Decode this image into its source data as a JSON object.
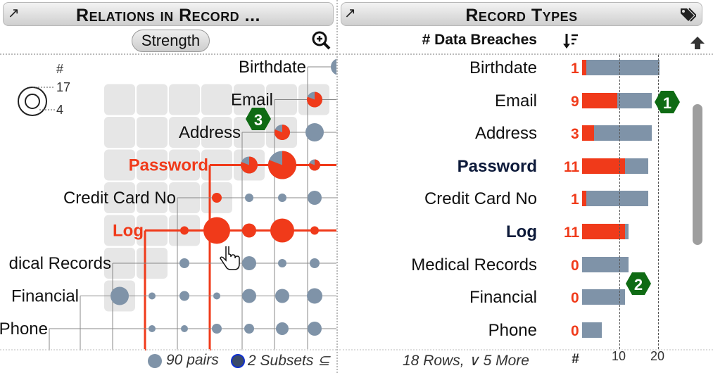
{
  "left": {
    "title": "Relations in Record ...",
    "strength_button": "Strength",
    "legend": {
      "symbol": "#",
      "big": "17",
      "small": "4"
    },
    "rows": [
      {
        "label": "Birthdate",
        "highlight": false
      },
      {
        "label": "Email",
        "highlight": false
      },
      {
        "label": "Address",
        "highlight": false
      },
      {
        "label": "Password",
        "highlight": true
      },
      {
        "label": "Credit Card No",
        "highlight": false
      },
      {
        "label": "Log",
        "highlight": true
      },
      {
        "label": "dical Records",
        "highlight": false
      },
      {
        "label": "Financial",
        "highlight": false
      },
      {
        "label": "Phone",
        "highlight": false
      }
    ],
    "badge3": "3",
    "footer_pairs": "90 pairs",
    "footer_subsets": "2 Subsets ⊆"
  },
  "right": {
    "title": "Record Types",
    "column_header": "# Data Breaches",
    "rows": [
      {
        "label": "Birthdate",
        "count": "1",
        "highlight": false,
        "red": 1,
        "total": 20
      },
      {
        "label": "Email",
        "count": "9",
        "highlight": false,
        "red": 9,
        "total": 18
      },
      {
        "label": "Address",
        "count": "3",
        "highlight": false,
        "red": 3,
        "total": 18
      },
      {
        "label": "Password",
        "count": "11",
        "highlight": true,
        "red": 11,
        "total": 17
      },
      {
        "label": "Credit Card No",
        "count": "1",
        "highlight": false,
        "red": 1,
        "total": 17
      },
      {
        "label": "Log",
        "count": "11",
        "highlight": true,
        "red": 11,
        "total": 12
      },
      {
        "label": "Medical Records",
        "count": "0",
        "highlight": false,
        "red": 0,
        "total": 12
      },
      {
        "label": "Financial",
        "count": "0",
        "highlight": false,
        "red": 0,
        "total": 11
      },
      {
        "label": "Phone",
        "count": "0",
        "highlight": false,
        "red": 0,
        "total": 5
      }
    ],
    "axis_ticks": [
      "10",
      "20"
    ],
    "axis_hash": "#",
    "footer_rows": "18 Rows, ∨ 5 More",
    "badge1": "1",
    "badge2": "2"
  },
  "colors": {
    "red": "#f03a1a",
    "gray_dot": "#7f93a8",
    "badge": "#0f6b14",
    "cell": "#e6e6e6"
  }
}
